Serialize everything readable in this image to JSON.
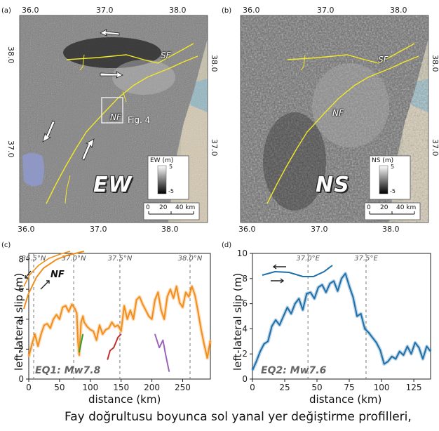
{
  "panels": {
    "a": {
      "letter": "(a)",
      "top_ticks": [
        "36.0",
        "37.0",
        "38.0"
      ],
      "bottom_ticks": [
        "36.0",
        "37.0",
        "38.0"
      ],
      "left_ticks": [
        "38.0",
        "37.0"
      ],
      "right_ticks": [
        "38.0",
        "37.0"
      ],
      "component_label": "EW",
      "fault_labels": {
        "sf": "SF",
        "nf": "NF"
      },
      "inset_label": "Fig. 4",
      "colorbar": {
        "title": "EW (m)",
        "max": "5",
        "min": "-5"
      },
      "scalebar": {
        "labels": [
          "0",
          "20",
          "40 km"
        ]
      }
    },
    "b": {
      "letter": "(b)",
      "top_ticks": [
        "36.0",
        "37.0",
        "38.0"
      ],
      "bottom_ticks": [
        "36.0",
        "37.0",
        "38.0"
      ],
      "right_ticks": [
        "38.0",
        "37.0"
      ],
      "component_label": "NS",
      "fault_labels": {
        "sf": "SF",
        "nf": "NF"
      },
      "colorbar": {
        "title": "NS (m)",
        "max": "5",
        "min": "-5"
      },
      "scalebar": {
        "labels": [
          "0",
          "20",
          "40 km"
        ]
      }
    },
    "c": {
      "letter": "(c)",
      "ylabel": "left-lateral slip (m)",
      "xlabel": "distance (km)",
      "eq_label": "EQ1: Mw7.8",
      "fault_label": "NF"
    },
    "d": {
      "letter": "(d)",
      "ylabel": "left-lateral slip (m)",
      "xlabel": "distance (km)",
      "eq_label": "EQ2: Mw7.6"
    }
  },
  "caption": "Fay doğrultusu boyunca sol yanal yer değiştirme profilleri,",
  "colors": {
    "orange": "#f28e1c",
    "blue": "#1f6fa8",
    "fault_yellow": "#f2e829",
    "green": "#2ca02c",
    "red": "#c0302b",
    "purple": "#9a64b8"
  },
  "chart_data": [
    {
      "type": "line",
      "panel": "c",
      "title": "EQ1: Mw7.8",
      "xlabel": "distance (km)",
      "ylabel": "left-lateral slip (m)",
      "xlim": [
        0,
        295
      ],
      "ylim": [
        0,
        8.4
      ],
      "xticks": [
        0,
        50,
        100,
        150,
        200,
        250
      ],
      "yticks": [
        0,
        2,
        4,
        6,
        8
      ],
      "latitude_markers": [
        {
          "x": 8,
          "label": "36.5°N"
        },
        {
          "x": 73,
          "label": "37.0°N"
        },
        {
          "x": 148,
          "label": "37.5°N"
        },
        {
          "x": 262,
          "label": "38.0°N"
        }
      ],
      "series": [
        {
          "name": "main",
          "color": "orange",
          "x": [
            0,
            5,
            10,
            15,
            20,
            25,
            30,
            35,
            40,
            45,
            50,
            55,
            60,
            65,
            70,
            75,
            78,
            80,
            82,
            85,
            88,
            90,
            95,
            100,
            105,
            110,
            115,
            120,
            125,
            130,
            135,
            140,
            145,
            150,
            155,
            160,
            165,
            170,
            175,
            180,
            185,
            190,
            195,
            200,
            205,
            210,
            215,
            220,
            225,
            230,
            235,
            240,
            245,
            250,
            255,
            260,
            265,
            270,
            275,
            280,
            285,
            290,
            295
          ],
          "y": [
            1.5,
            2.3,
            3.0,
            2.2,
            3.0,
            3.6,
            3.7,
            3.4,
            4.0,
            4.3,
            4.0,
            4.8,
            4.9,
            4.5,
            5.0,
            4.7,
            4.4,
            2.5,
            1.6,
            3.8,
            4.2,
            3.8,
            3.5,
            3.3,
            3.2,
            2.6,
            3.6,
            3.0,
            3.3,
            3.4,
            3.8,
            3.5,
            3.6,
            3.2,
            4.9,
            4.0,
            4.6,
            4.0,
            5.3,
            5.5,
            5.0,
            4.6,
            4.2,
            4.0,
            5.3,
            5.8,
            4.6,
            4.0,
            5.5,
            6.0,
            5.4,
            6.2,
            5.1,
            4.8,
            5.8,
            5.5,
            6.2,
            5.6,
            4.5,
            3.3,
            2.3,
            1.4,
            2.6
          ]
        },
        {
          "name": "green",
          "color": "green",
          "x": [
            82,
            85,
            88
          ],
          "y": [
            1.8,
            2.4,
            3.0
          ]
        },
        {
          "name": "red",
          "color": "red",
          "x": [
            128,
            132,
            138,
            145,
            150
          ],
          "y": [
            1.3,
            1.9,
            2.1,
            2.8,
            3.0
          ]
        },
        {
          "name": "purple",
          "color": "purple",
          "x": [
            205,
            212,
            218,
            222,
            228
          ],
          "y": [
            3.0,
            2.1,
            2.6,
            1.7,
            0.5
          ]
        }
      ]
    },
    {
      "type": "line",
      "panel": "d",
      "title": "EQ2: Mw7.6",
      "xlabel": "distance (km)",
      "ylabel": "left-lateral slip (m)",
      "xlim": [
        0,
        138
      ],
      "ylim": [
        0,
        10
      ],
      "xticks": [
        0,
        25,
        50,
        75,
        100,
        125
      ],
      "yticks": [
        0,
        2,
        4,
        6,
        8,
        10
      ],
      "latitude_markers": [
        {
          "x": 43,
          "label": "37.0°E"
        },
        {
          "x": 88,
          "label": "37.5°E"
        }
      ],
      "series": [
        {
          "name": "main",
          "color": "blue",
          "x": [
            0,
            3,
            6,
            9,
            12,
            15,
            18,
            21,
            24,
            27,
            30,
            33,
            36,
            39,
            42,
            45,
            48,
            51,
            54,
            57,
            60,
            63,
            66,
            69,
            72,
            75,
            78,
            81,
            84,
            87,
            90,
            93,
            96,
            99,
            102,
            105,
            108,
            111,
            114,
            117,
            120,
            123,
            126,
            129,
            132,
            135,
            138
          ],
          "y": [
            0.7,
            1.4,
            2.2,
            2.8,
            3.0,
            4.2,
            4.7,
            4.3,
            5.0,
            5.7,
            5.2,
            6.0,
            6.4,
            5.5,
            6.8,
            6.9,
            6.4,
            7.3,
            7.5,
            6.9,
            7.6,
            7.8,
            7.0,
            8.0,
            8.4,
            7.4,
            6.5,
            5.0,
            5.2,
            4.0,
            3.7,
            3.3,
            2.9,
            2.3,
            1.2,
            1.4,
            1.8,
            1.6,
            2.2,
            1.9,
            2.6,
            2.0,
            2.9,
            2.5,
            1.6,
            2.6,
            2.2
          ]
        }
      ]
    }
  ]
}
